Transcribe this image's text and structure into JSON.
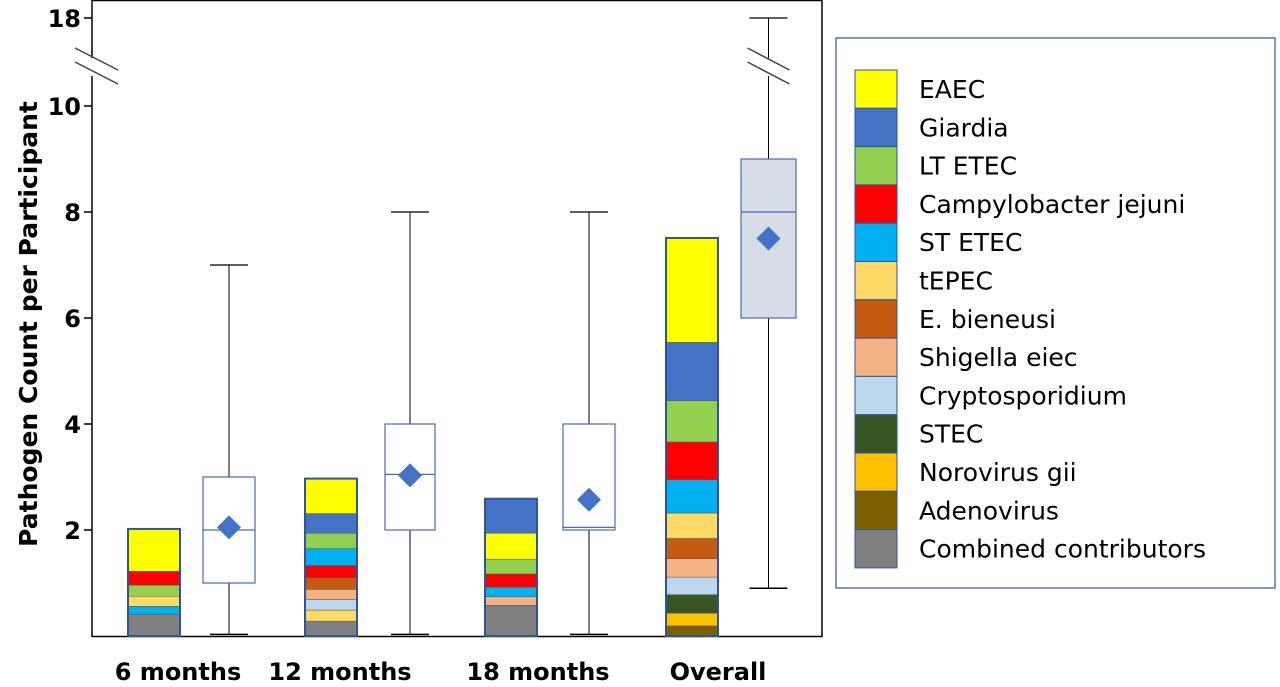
{
  "chart_data": {
    "type": "stacked bar with box plots",
    "ylabel": "Pathogen Count per Participant",
    "y_ticks": [
      2,
      4,
      6,
      8,
      10,
      18
    ],
    "y_axis_break": [
      10,
      18
    ],
    "categories": [
      "6 months",
      "12 months",
      "18 months",
      "Overall"
    ],
    "legend_position": "right",
    "pathogens": [
      {
        "name": "EAEC",
        "color": "#FFFF00"
      },
      {
        "name": "Giardia",
        "color": "#4472C4"
      },
      {
        "name": "LT ETEC",
        "color": "#92D050"
      },
      {
        "name": "Campylobacter jejuni",
        "color": "#FF0000"
      },
      {
        "name": "ST ETEC",
        "color": "#00B0F0"
      },
      {
        "name": "tEPEC",
        "color": "#FFD966"
      },
      {
        "name": "E. bieneusi",
        "color": "#C55A11"
      },
      {
        "name": "Shigella eiec",
        "color": "#F4B183"
      },
      {
        "name": "Cryptosporidium",
        "color": "#BDD7EE"
      },
      {
        "name": "STEC",
        "color": "#375623"
      },
      {
        "name": "Norovirus gii",
        "color": "#FFC000"
      },
      {
        "name": "Adenovirus",
        "color": "#7F6000"
      },
      {
        "name": "Combined contributors",
        "color": "#808080"
      }
    ],
    "stacks": [
      {
        "category": "6 months",
        "segments_bottom_to_top": [
          {
            "name": "Combined contributors",
            "value": 0.41
          },
          {
            "name": "ST ETEC",
            "value": 0.15
          },
          {
            "name": "tEPEC",
            "value": 0.19
          },
          {
            "name": "LT ETEC",
            "value": 0.21
          },
          {
            "name": "Campylobacter jejuni",
            "value": 0.26
          },
          {
            "name": "EAEC",
            "value": 0.8
          }
        ]
      },
      {
        "category": "12 months",
        "segments_bottom_to_top": [
          {
            "name": "Combined contributors",
            "value": 0.28
          },
          {
            "name": "tEPEC",
            "value": 0.21
          },
          {
            "name": "Cryptosporidium",
            "value": 0.2
          },
          {
            "name": "Shigella eiec",
            "value": 0.19
          },
          {
            "name": "E. bieneusi",
            "value": 0.22
          },
          {
            "name": "Campylobacter jejuni",
            "value": 0.23
          },
          {
            "name": "ST ETEC",
            "value": 0.32
          },
          {
            "name": "LT ETEC",
            "value": 0.29
          },
          {
            "name": "Giardia",
            "value": 0.37
          },
          {
            "name": "EAEC",
            "value": 0.66
          }
        ]
      },
      {
        "category": "18 months",
        "segments_bottom_to_top": [
          {
            "name": "Combined contributors",
            "value": 0.58
          },
          {
            "name": "Shigella eiec",
            "value": 0.16
          },
          {
            "name": "ST ETEC",
            "value": 0.18
          },
          {
            "name": "Campylobacter jejuni",
            "value": 0.25
          },
          {
            "name": "LT ETEC",
            "value": 0.28
          },
          {
            "name": "EAEC",
            "value": 0.49
          },
          {
            "name": "Giardia",
            "value": 0.65
          }
        ]
      },
      {
        "category": "Overall",
        "segments_bottom_to_top": [
          {
            "name": "Adenovirus",
            "value": 0.19
          },
          {
            "name": "Norovirus gii",
            "value": 0.24
          },
          {
            "name": "STEC",
            "value": 0.35
          },
          {
            "name": "Cryptosporidium",
            "value": 0.33
          },
          {
            "name": "Shigella eiec",
            "value": 0.35
          },
          {
            "name": "E. bieneusi",
            "value": 0.38
          },
          {
            "name": "tEPEC",
            "value": 0.48
          },
          {
            "name": "ST ETEC",
            "value": 0.63
          },
          {
            "name": "Campylobacter jejuni",
            "value": 0.71
          },
          {
            "name": "LT ETEC",
            "value": 0.78
          },
          {
            "name": "Giardia",
            "value": 1.1
          },
          {
            "name": "EAEC",
            "value": 1.97
          }
        ]
      }
    ],
    "boxes": [
      {
        "category": "6 months",
        "min": 0.03,
        "q1": 1.0,
        "median": 2.0,
        "q3": 3.0,
        "max": 7.0,
        "mean": 2.05
      },
      {
        "category": "12 months",
        "min": 0.03,
        "q1": 2.0,
        "median": 3.05,
        "q3": 4.0,
        "max": 8.0,
        "mean": 3.03
      },
      {
        "category": "18 months",
        "min": 0.03,
        "q1": 2.0,
        "median": 2.05,
        "q3": 4.0,
        "max": 8.0,
        "mean": 2.57
      },
      {
        "category": "Overall",
        "min": 0.9,
        "q1": 6.0,
        "median": 8.0,
        "q3": 9.0,
        "max": 18.0,
        "mean": 7.5
      }
    ],
    "box_fill_colors": {
      "default": "#FFFFFF",
      "Overall": "#D6DCE5"
    },
    "mean_marker_color": "#4472C4"
  }
}
